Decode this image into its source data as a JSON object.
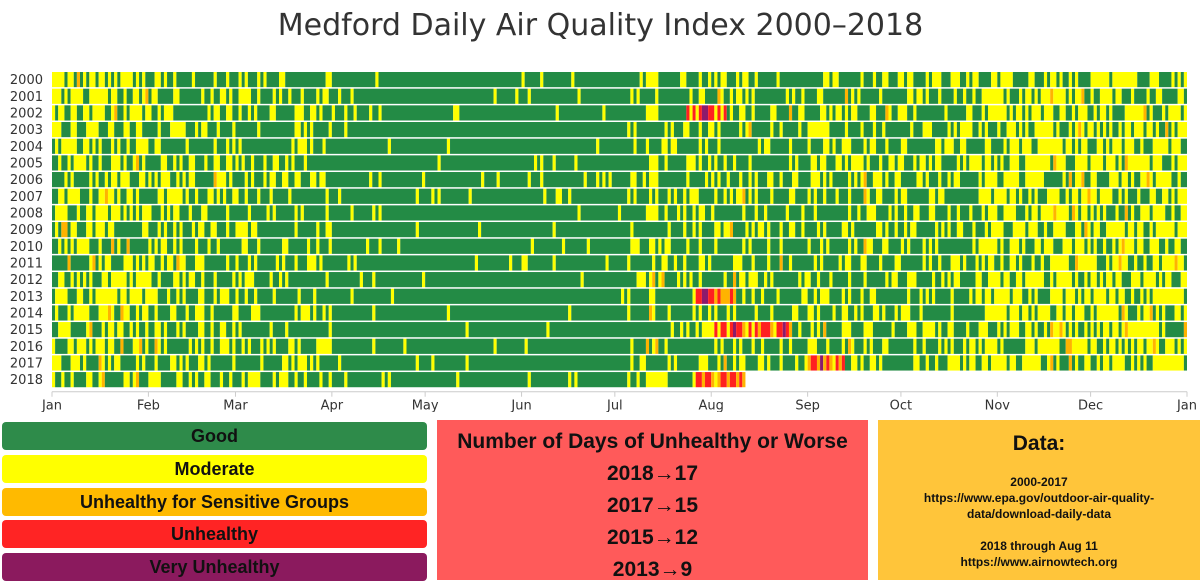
{
  "chart_data": {
    "type": "heatmap",
    "title": "Medford Daily Air Quality Index 2000–2018",
    "years": [
      "2000",
      "2001",
      "2002",
      "2003",
      "2004",
      "2005",
      "2006",
      "2007",
      "2008",
      "2009",
      "2010",
      "2011",
      "2012",
      "2013",
      "2014",
      "2015",
      "2016",
      "2017",
      "2018"
    ],
    "months": [
      "Jan",
      "Feb",
      "Mar",
      "Apr",
      "May",
      "Jun",
      "Jul",
      "Aug",
      "Sep",
      "Oct",
      "Nov",
      "Dec",
      "Jan"
    ],
    "x_axis": "day of year",
    "categories": [
      {
        "key": "good",
        "label": "Good",
        "color": "#238b45"
      },
      {
        "key": "moderate",
        "label": "Moderate",
        "color": "#ffff00"
      },
      {
        "key": "usg",
        "label": "Unhealthy for Sensitive Groups",
        "color": "#ffb300"
      },
      {
        "key": "unhealthy",
        "label": "Unhealthy",
        "color": "#ff2020"
      },
      {
        "key": "very_unhealthy",
        "label": "Very Unhealthy",
        "color": "#8b1a6b"
      }
    ],
    "last_day_2018": "Aug 11",
    "notable_events": [
      {
        "year": "2018",
        "start": "Jul 27",
        "end": "Aug 11",
        "category": "unhealthy"
      },
      {
        "year": "2017",
        "start": "Aug 31",
        "end": "Sep 12",
        "category": "unhealthy"
      },
      {
        "year": "2015",
        "start": "Aug 1",
        "end": "Aug 26",
        "category": "unhealthy"
      },
      {
        "year": "2013",
        "start": "Jul 27",
        "end": "Aug 8",
        "category": "unhealthy"
      },
      {
        "year": "2002",
        "start": "Jul 24",
        "end": "Aug 5",
        "category": "unhealthy"
      }
    ]
  },
  "legend": {
    "good": "Good",
    "moderate": "Moderate",
    "usg": "Unhealthy for Sensitive Groups",
    "unhealthy": "Unhealthy",
    "very_unhealthy": "Very Unhealthy"
  },
  "days_panel": {
    "title": "Number of Days of Unhealthy or Worse",
    "rows": [
      "2018→17",
      "2017→15",
      "2015→12",
      "2013→9"
    ]
  },
  "data_panel": {
    "title": "Data:",
    "line1": "2000-2017",
    "line2": "https://www.epa.gov/outdoor-air-quality-",
    "line3": "data/download-daily-data",
    "line4": "2018 through Aug 11",
    "line5": "https://www.airnowtech.org"
  },
  "colors": {
    "good": "#238b45",
    "moderate": "#ffff00",
    "usg": "#ffb300",
    "unhealthy": "#ff2020",
    "very_unhealthy": "#8b1a6b",
    "days_panel_bg": "#ff5a5a",
    "data_panel_bg": "#ffc53a"
  }
}
